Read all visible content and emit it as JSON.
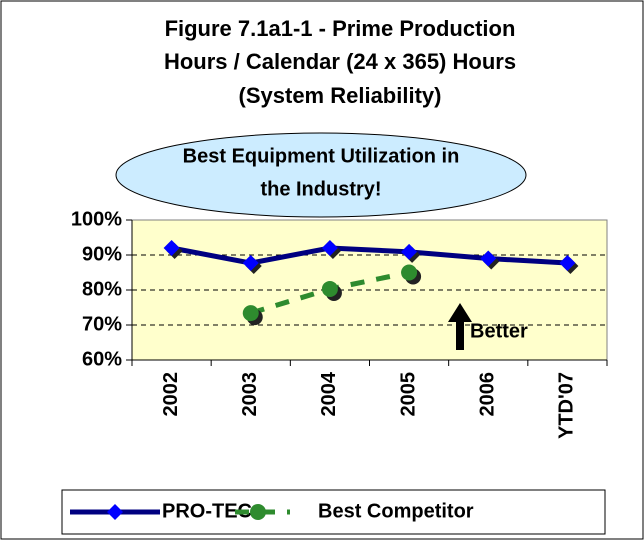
{
  "chart_data": {
    "type": "line",
    "title": [
      "Figure 7.1a1-1 - Prime Production",
      "Hours / Calendar (24 x 365) Hours",
      "(System Reliability)"
    ],
    "callout": [
      "Best Equipment Utilization in",
      "the Industry!"
    ],
    "annotation": "Better",
    "categories": [
      "2002",
      "2003",
      "2004",
      "2005",
      "2006",
      "YTD'07"
    ],
    "series": [
      {
        "name": "PRO-TEC",
        "color": "#000080",
        "marker_color": "#0000ff",
        "values": [
          92,
          87.7,
          92,
          90.9,
          89,
          87.7
        ]
      },
      {
        "name": "Best Competitor",
        "color": "#2e8b2e",
        "marker_color": "#2e8b2e",
        "values": [
          null,
          73.4,
          80.3,
          85,
          null,
          null
        ]
      }
    ],
    "ylim": [
      60,
      100
    ],
    "yticks": [
      {
        "value": 60,
        "label": "60%"
      },
      {
        "value": 70,
        "label": "70%"
      },
      {
        "value": 80,
        "label": "80%"
      },
      {
        "value": 90,
        "label": "90%"
      },
      {
        "value": 100,
        "label": "100%"
      }
    ],
    "grid": true
  }
}
